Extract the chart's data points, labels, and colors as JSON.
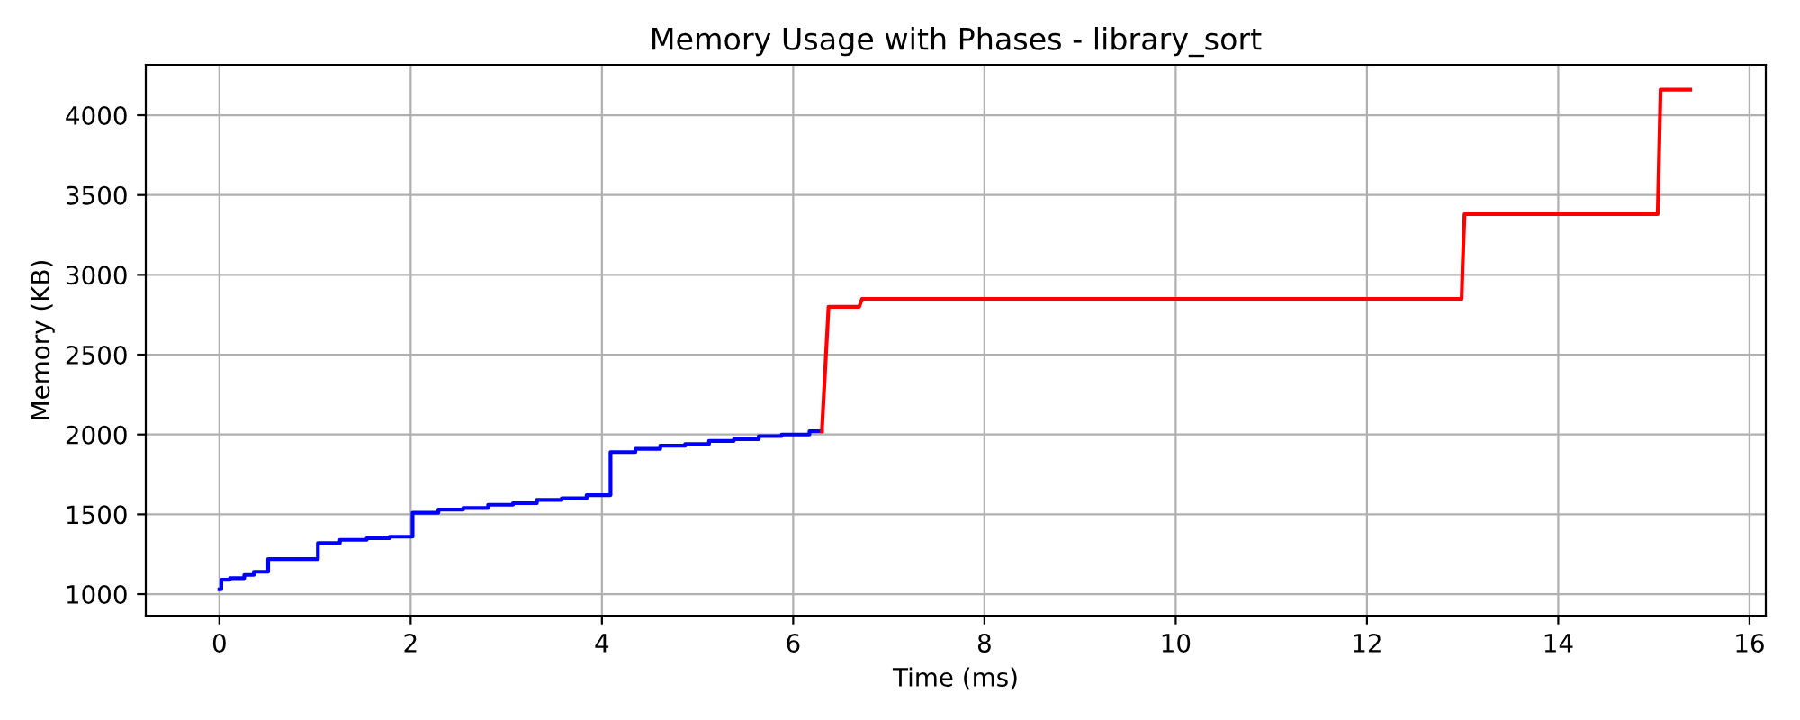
{
  "chart_data": {
    "type": "line",
    "title": "Memory Usage with Phases - library_sort",
    "xlabel": "Time (ms)",
    "ylabel": "Memory (KB)",
    "series": [
      {
        "type": "step",
        "color": "#0000ff",
        "x": [
          0,
          0.02,
          0.11,
          0.26,
          0.36,
          0.51,
          1.03,
          1.26,
          1.54,
          1.78,
          2.02,
          2.29,
          2.55,
          2.81,
          3.07,
          3.32,
          3.58,
          3.84,
          4.09,
          4.35,
          4.61,
          4.87,
          5.12,
          5.38,
          5.64,
          5.88,
          6.17,
          6.3
        ],
        "values": [
          1030,
          1090,
          1100,
          1120,
          1140,
          1220,
          1320,
          1340,
          1350,
          1360,
          1510,
          1530,
          1540,
          1560,
          1570,
          1590,
          1600,
          1620,
          1890,
          1910,
          1930,
          1940,
          1960,
          1970,
          1990,
          2000,
          2020,
          2020
        ]
      },
      {
        "color": "#ff0000",
        "x": [
          6.3,
          6.37,
          6.69,
          6.72,
          12.99,
          13.0,
          13.02,
          15.04,
          15.07,
          15.38
        ],
        "values": [
          2020,
          2800,
          2800,
          2850,
          2850,
          3050,
          3380,
          3380,
          4160,
          4160
        ]
      }
    ],
    "xlim": [
      -0.77,
      16.17
    ],
    "ylim": [
      865,
      4316
    ],
    "xticks": [
      0,
      2,
      4,
      6,
      8,
      10,
      12,
      14,
      16
    ],
    "yticks": [
      1000,
      1500,
      2000,
      2500,
      3000,
      3500,
      4000
    ],
    "grid": true
  }
}
